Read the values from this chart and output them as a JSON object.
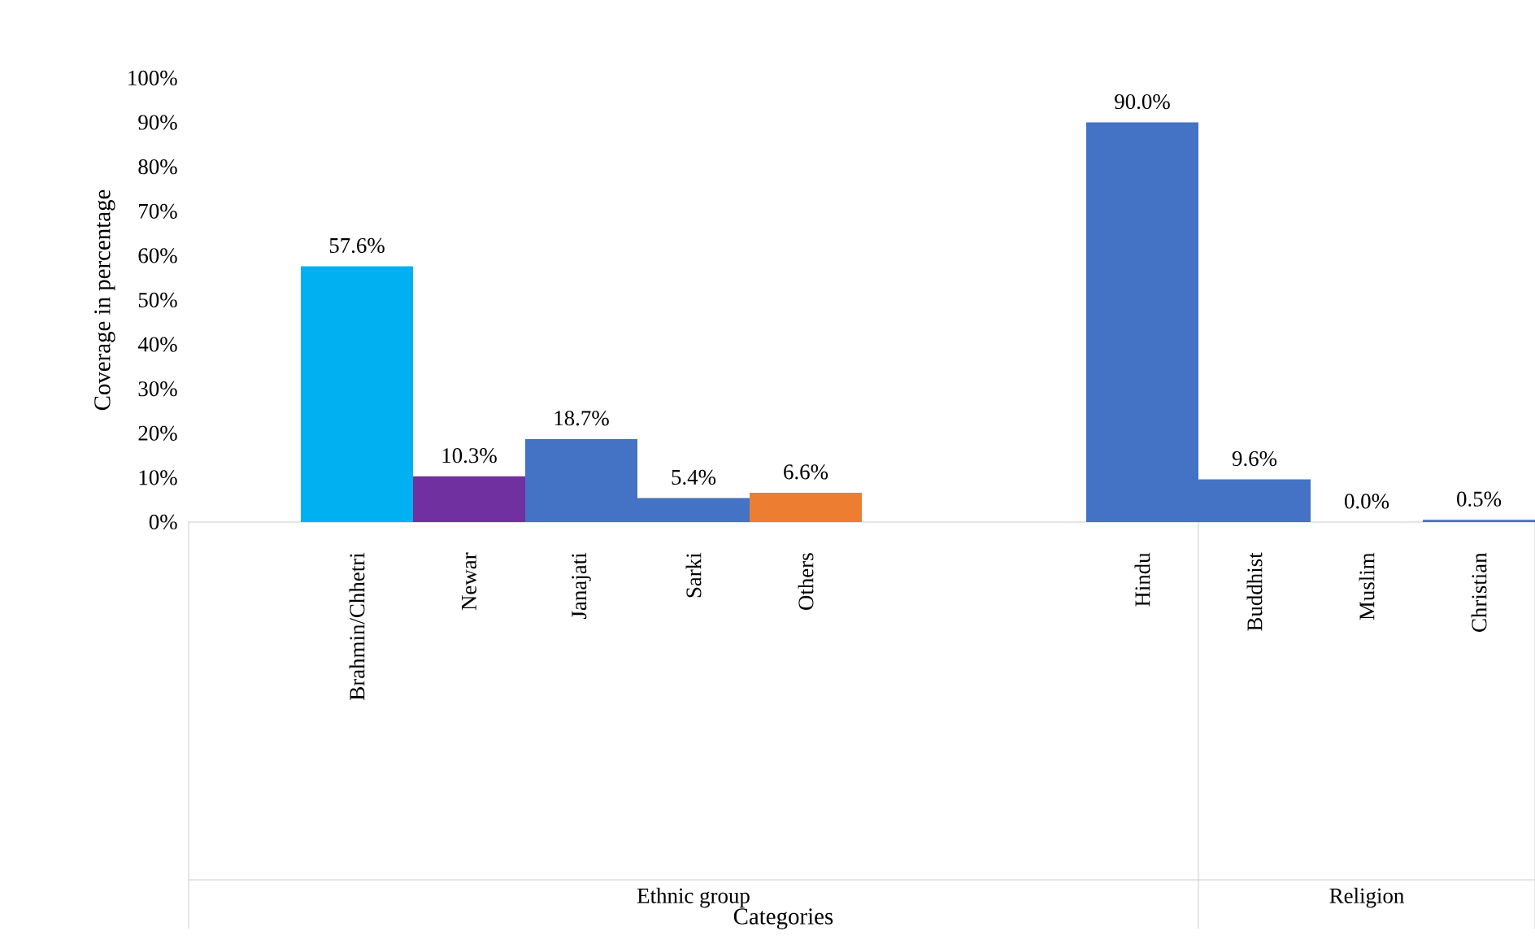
{
  "chart_data": {
    "type": "bar",
    "categories": [
      null,
      "Brahmin/Chhetri",
      "Newar",
      "Janajati",
      "Sarki",
      "Others",
      null,
      null,
      "Hindu",
      "Buddhist",
      "Muslim",
      "Christian"
    ],
    "values": [
      null,
      57.6,
      10.3,
      18.7,
      5.4,
      6.6,
      null,
      null,
      90.0,
      9.6,
      0.0,
      0.5
    ],
    "colors": [
      "#4472c4",
      "#00b0f0",
      "#7030a0",
      "#4472c4",
      "#4472c4",
      "#ed7d31",
      "#4472c4",
      "#4472c4",
      "#4472c4",
      "#4472c4",
      "#4472c4",
      "#4472c4"
    ],
    "value_labels": [
      null,
      "57.6%",
      "10.3%",
      "18.7%",
      "5.4%",
      "6.6%",
      null,
      null,
      "90.0%",
      "9.6%",
      "0.0%",
      "0.5%"
    ],
    "ylabel": "Coverage in percentage",
    "annotations": [
      "Ethnic group",
      "Religion",
      "Categories"
    ],
    "ylim": [
      0,
      100
    ],
    "yticks": [
      {
        "value": 0,
        "label": "0%"
      },
      {
        "value": 10,
        "label": "10%"
      },
      {
        "value": 20,
        "label": "20%"
      },
      {
        "value": 30,
        "label": "30%"
      },
      {
        "value": 40,
        "label": "40%"
      },
      {
        "value": 50,
        "label": "50%"
      },
      {
        "value": 60,
        "label": "60%"
      },
      {
        "value": 70,
        "label": "70%"
      },
      {
        "value": 80,
        "label": "80%"
      },
      {
        "value": 90,
        "label": "90%"
      },
      {
        "value": 100,
        "label": "100%"
      }
    ],
    "grid": false
  }
}
